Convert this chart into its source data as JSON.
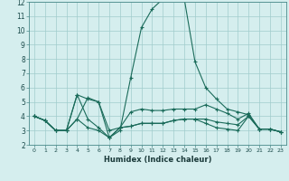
{
  "xlabel": "Humidex (Indice chaleur)",
  "bg_color": "#d5eeee",
  "grid_color": "#a0cccc",
  "line_color": "#1a6b5a",
  "xlim": [
    -0.5,
    23.5
  ],
  "ylim": [
    2,
    12
  ],
  "yticks": [
    2,
    3,
    4,
    5,
    6,
    7,
    8,
    9,
    10,
    11,
    12
  ],
  "xticks": [
    0,
    1,
    2,
    3,
    4,
    5,
    6,
    7,
    8,
    9,
    10,
    11,
    12,
    13,
    14,
    15,
    16,
    17,
    18,
    19,
    20,
    21,
    22,
    23
  ],
  "series": [
    {
      "x": [
        0,
        1,
        2,
        3,
        4,
        5,
        6,
        7,
        8,
        9,
        10,
        11,
        12,
        13,
        14,
        15,
        16,
        17,
        18,
        19,
        20,
        21,
        22,
        23
      ],
      "y": [
        4.0,
        3.7,
        3.0,
        3.0,
        5.5,
        3.8,
        3.2,
        2.5,
        3.0,
        6.7,
        10.2,
        11.5,
        12.2,
        12.2,
        12.2,
        7.8,
        6.0,
        5.2,
        4.5,
        4.3,
        4.1,
        3.1,
        3.1,
        2.9
      ]
    },
    {
      "x": [
        0,
        1,
        2,
        3,
        4,
        5,
        6,
        7,
        8,
        9,
        10,
        11,
        12,
        13,
        14,
        15,
        16,
        17,
        18,
        19,
        20,
        21,
        22,
        23
      ],
      "y": [
        4.0,
        3.7,
        3.0,
        3.0,
        5.5,
        5.2,
        5.0,
        3.0,
        3.2,
        4.3,
        4.5,
        4.4,
        4.4,
        4.5,
        4.5,
        4.5,
        4.8,
        4.5,
        4.2,
        3.8,
        4.2,
        3.1,
        3.1,
        2.9
      ]
    },
    {
      "x": [
        0,
        1,
        2,
        3,
        4,
        5,
        6,
        7,
        8,
        9,
        10,
        11,
        12,
        13,
        14,
        15,
        16,
        17,
        18,
        19,
        20,
        21,
        22,
        23
      ],
      "y": [
        4.0,
        3.7,
        3.0,
        3.0,
        3.8,
        3.2,
        3.0,
        2.5,
        3.2,
        3.3,
        3.5,
        3.5,
        3.5,
        3.7,
        3.8,
        3.8,
        3.8,
        3.6,
        3.5,
        3.4,
        4.0,
        3.1,
        3.1,
        2.9
      ]
    },
    {
      "x": [
        0,
        1,
        2,
        3,
        4,
        5,
        6,
        7,
        8,
        9,
        10,
        11,
        12,
        13,
        14,
        15,
        16,
        17,
        18,
        19,
        20,
        21,
        22,
        23
      ],
      "y": [
        4.0,
        3.7,
        3.0,
        3.0,
        3.8,
        5.3,
        5.0,
        2.5,
        3.2,
        3.3,
        3.5,
        3.5,
        3.5,
        3.7,
        3.8,
        3.8,
        3.5,
        3.2,
        3.1,
        3.0,
        4.0,
        3.1,
        3.1,
        2.9
      ]
    }
  ]
}
